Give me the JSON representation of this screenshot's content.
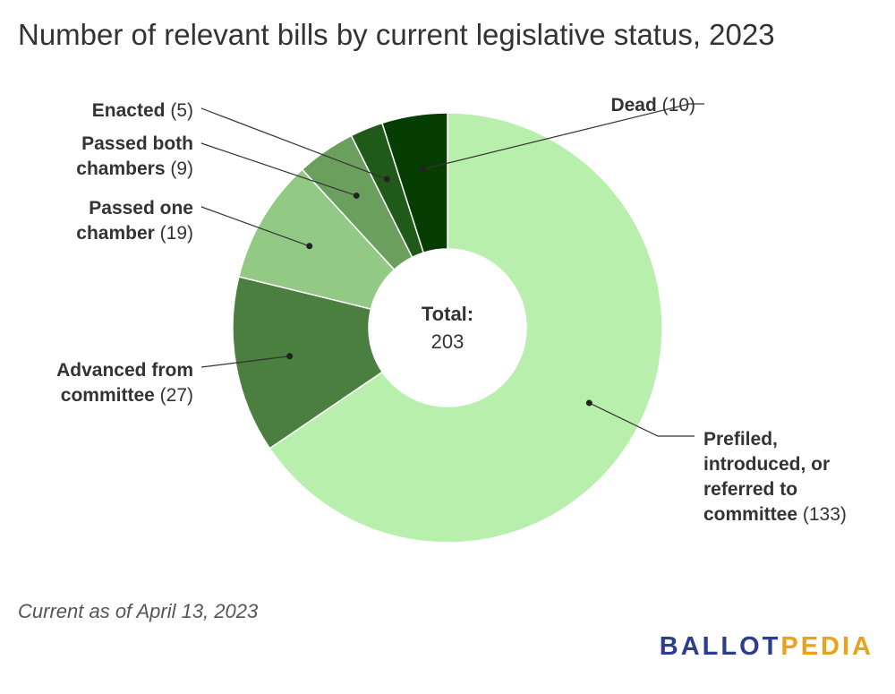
{
  "title": "Number of relevant bills by current legislative status, 2023",
  "footnote": "Current as of April 13, 2023",
  "logo": {
    "part1": "BALLOT",
    "part2": "PEDIA",
    "color1": "#2b3d8f",
    "color2": "#e8a21b"
  },
  "chart_data": {
    "type": "pie",
    "title": "Number of relevant bills by current legislative status, 2023",
    "donut": true,
    "center_label": "Total:",
    "center_value": "203",
    "slices": [
      {
        "name": "Prefiled, introduced, or referred to committee",
        "value": 133,
        "color": "#b9efad",
        "label_lines": [
          "Prefiled,",
          "introduced, or",
          "referred to",
          "committee"
        ],
        "value_text": "(133)"
      },
      {
        "name": "Advanced from committee",
        "value": 27,
        "color": "#4a7f3f",
        "label_lines": [
          "Advanced from",
          "committee"
        ],
        "value_text": "(27)"
      },
      {
        "name": "Passed one chamber",
        "value": 19,
        "color": "#92c985",
        "label_lines": [
          "Passed one",
          "chamber"
        ],
        "value_text": "(19)"
      },
      {
        "name": "Passed both chambers",
        "value": 9,
        "color": "#6a9f5e",
        "label_lines": [
          "Passed both",
          "chambers"
        ],
        "value_text": "(9)"
      },
      {
        "name": "Enacted",
        "value": 5,
        "color": "#1f5a19",
        "label_lines": [
          "Enacted"
        ],
        "value_text": "(5)"
      },
      {
        "name": "Dead",
        "value": 10,
        "color": "#053d02",
        "label_lines": [
          "Dead"
        ],
        "value_text": "(10)"
      }
    ]
  }
}
